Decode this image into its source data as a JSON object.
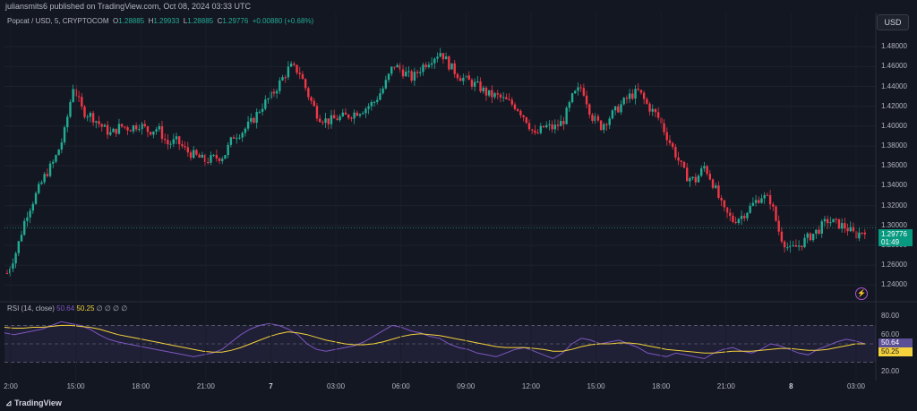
{
  "header": {
    "attribution": "juliansmits6 published on TradingView.com, Oct 08, 2024 03:33 UTC"
  },
  "currency_button": "USD",
  "legend": {
    "symbol": "Popcat / USD, 5, CRYPTOCOM",
    "o_label": "O",
    "o_value": "1.28885",
    "h_label": "H",
    "h_value": "1.29933",
    "l_label": "L",
    "l_value": "1.28885",
    "c_label": "C",
    "c_value": "1.29776",
    "change": "+0.00880 (+0.68%)"
  },
  "price_box": {
    "price": "1.29776",
    "countdown": "01:49"
  },
  "rsi_legend": {
    "label": "RSI (14, close)",
    "rsi": "50.64",
    "ma": "50.25",
    "extras": "∅ ∅ ∅ ∅"
  },
  "rsi_boxes": {
    "rsi": "50.64",
    "ma": "50.25"
  },
  "footer": {
    "brand": "TradingView"
  },
  "colors": {
    "up": "#22ab94",
    "down": "#f23645",
    "rsi": "#7e57c2",
    "rsi_ma": "#f5d33c",
    "bg": "#131722"
  },
  "chart_data": {
    "type": "candlestick",
    "price_axis": {
      "ticks": [
        "1.48000",
        "1.46000",
        "1.44000",
        "1.42000",
        "1.40000",
        "1.38000",
        "1.36000",
        "1.34000",
        "1.32000",
        "1.30000",
        "1.28000",
        "1.26000",
        "1.24000"
      ],
      "ylim": [
        1.225,
        1.5
      ]
    },
    "rsi_axis": {
      "ticks": [
        "80.00",
        "60.00",
        "40.00",
        "20.00"
      ],
      "ylim": [
        15,
        85
      ],
      "bands": [
        30,
        70
      ]
    },
    "x_ticks": [
      {
        "label": "2:00",
        "bold": false
      },
      {
        "label": "15:00",
        "bold": false
      },
      {
        "label": "18:00",
        "bold": false
      },
      {
        "label": "21:00",
        "bold": false
      },
      {
        "label": "7",
        "bold": true
      },
      {
        "label": "03:00",
        "bold": false
      },
      {
        "label": "06:00",
        "bold": false
      },
      {
        "label": "09:00",
        "bold": false
      },
      {
        "label": "12:00",
        "bold": false
      },
      {
        "label": "15:00",
        "bold": false
      },
      {
        "label": "18:00",
        "bold": false
      },
      {
        "label": "21:00",
        "bold": false
      },
      {
        "label": "8",
        "bold": true
      },
      {
        "label": "03:00",
        "bold": false
      }
    ],
    "close_path": [
      1.252,
      1.275,
      1.31,
      1.33,
      1.35,
      1.365,
      1.39,
      1.44,
      1.415,
      1.41,
      1.4,
      1.392,
      1.4,
      1.398,
      1.402,
      1.395,
      1.398,
      1.382,
      1.385,
      1.375,
      1.37,
      1.365,
      1.368,
      1.37,
      1.39,
      1.395,
      1.405,
      1.42,
      1.43,
      1.445,
      1.46,
      1.455,
      1.43,
      1.41,
      1.405,
      1.408,
      1.41,
      1.414,
      1.418,
      1.425,
      1.44,
      1.462,
      1.455,
      1.448,
      1.46,
      1.468,
      1.475,
      1.46,
      1.45,
      1.445,
      1.44,
      1.432,
      1.43,
      1.425,
      1.42,
      1.408,
      1.39,
      1.4,
      1.398,
      1.405,
      1.43,
      1.44,
      1.41,
      1.4,
      1.41,
      1.42,
      1.43,
      1.435,
      1.42,
      1.41,
      1.39,
      1.37,
      1.35,
      1.345,
      1.36,
      1.34,
      1.315,
      1.305,
      1.31,
      1.32,
      1.33,
      1.325,
      1.29,
      1.275,
      1.28,
      1.288,
      1.295,
      1.305,
      1.302,
      1.298,
      1.29,
      1.296
    ],
    "rsi_path": [
      62,
      60,
      62,
      64,
      66,
      70,
      74,
      72,
      70,
      66,
      60,
      55,
      52,
      50,
      48,
      46,
      44,
      42,
      40,
      38,
      36,
      38,
      40,
      44,
      52,
      60,
      66,
      70,
      72,
      70,
      66,
      60,
      50,
      44,
      42,
      44,
      46,
      48,
      52,
      58,
      64,
      70,
      68,
      64,
      62,
      58,
      56,
      50,
      46,
      44,
      40,
      38,
      36,
      40,
      44,
      46,
      42,
      38,
      34,
      40,
      50,
      56,
      54,
      50,
      52,
      54,
      50,
      46,
      40,
      38,
      36,
      40,
      38,
      36,
      34,
      40,
      44,
      46,
      42,
      40,
      44,
      50,
      48,
      44,
      40,
      38,
      44,
      48,
      52,
      55,
      53,
      50
    ],
    "rsi_ma_path": [
      68,
      67,
      67,
      68,
      68,
      69,
      70,
      70,
      69,
      68,
      66,
      63,
      60,
      58,
      56,
      54,
      52,
      50,
      48,
      46,
      44,
      42,
      41,
      41,
      43,
      46,
      50,
      54,
      58,
      61,
      63,
      62,
      60,
      57,
      54,
      52,
      50,
      49,
      49,
      50,
      52,
      55,
      58,
      60,
      61,
      60,
      59,
      57,
      55,
      53,
      51,
      49,
      47,
      46,
      46,
      46,
      45,
      44,
      42,
      42,
      44,
      47,
      49,
      50,
      50,
      51,
      51,
      50,
      48,
      46,
      44,
      43,
      42,
      41,
      40,
      40,
      41,
      42,
      42,
      42,
      43,
      44,
      45,
      45,
      44,
      43,
      43,
      44,
      46,
      48,
      50,
      50
    ]
  }
}
